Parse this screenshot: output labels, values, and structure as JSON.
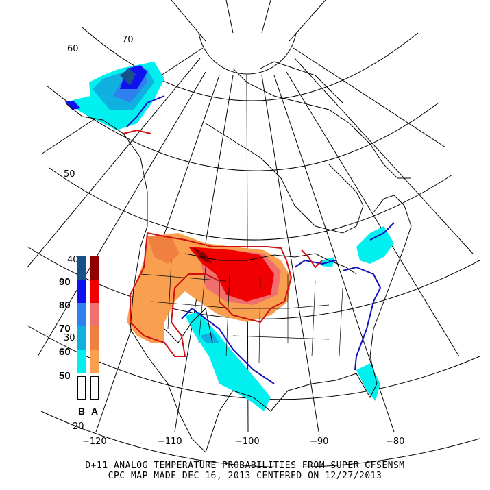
{
  "map": {
    "lat_labels": [
      {
        "key": "lat70",
        "text": "70"
      },
      {
        "key": "lat60",
        "text": "60"
      },
      {
        "key": "lat50",
        "text": "50"
      },
      {
        "key": "lat40",
        "text": "40"
      },
      {
        "key": "lat30",
        "text": "30"
      },
      {
        "key": "lat20",
        "text": "20"
      }
    ],
    "lon_labels": [
      "−120",
      "−110",
      "−100",
      "−90",
      "−80"
    ],
    "colors": {
      "below_50": "#00f0f0",
      "below_60": "#10b0e0",
      "below_70": "#3080f0",
      "below_80": "#1010f0",
      "below_90": "#18508c",
      "above_50": "#f8a050",
      "above_60": "#f08040",
      "above_70": "#f07070",
      "above_80": "#f00000",
      "above_90": "#900000",
      "contour_below": "#1010c0",
      "contour_above": "#d01010"
    }
  },
  "legend": {
    "levels": [
      "90",
      "80",
      "70",
      "60",
      "50"
    ],
    "below_label": "B",
    "above_label": "A"
  },
  "caption": {
    "line1": "D+11 ANALOG TEMPERATURE PROBABILITIES FROM SUPER GFSENSM",
    "line2": "CPC MAP MADE DEC 16, 2013 CENTERED ON 12/27/2013"
  }
}
